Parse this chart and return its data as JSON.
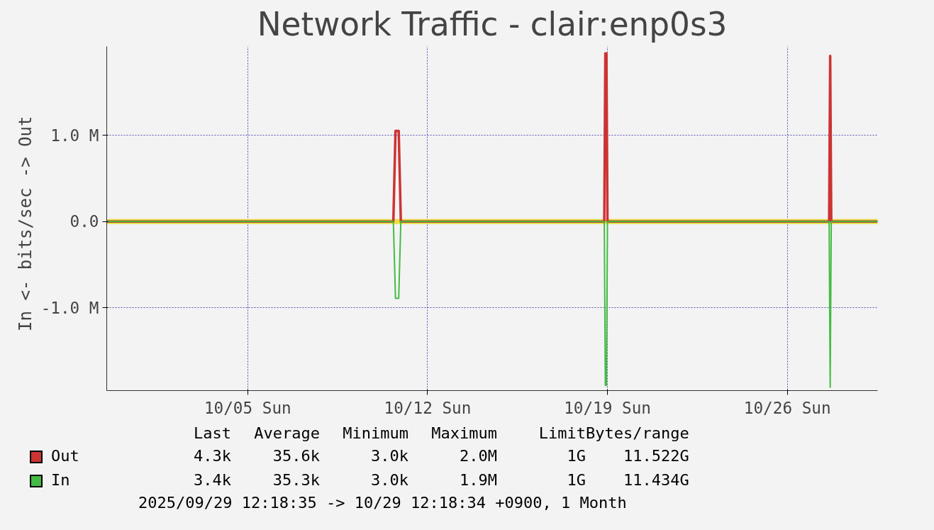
{
  "chart_data": {
    "type": "line",
    "title": "Network Traffic - clair:enp0s3",
    "ylabel": "In <-  bits/sec -> Out",
    "xlim": [
      "2025-09-29T12:18",
      "2025-10-29T12:18"
    ],
    "xticks": [
      {
        "value": "2025-10-05",
        "label": "10/05 Sun"
      },
      {
        "value": "2025-10-12",
        "label": "10/12 Sun"
      },
      {
        "value": "2025-10-19",
        "label": "10/19 Sun"
      },
      {
        "value": "2025-10-26",
        "label": "10/26 Sun"
      }
    ],
    "ylim": [
      -1960000,
      2030000
    ],
    "yticks": [
      {
        "value": -1000000,
        "label": "-1.0 M"
      },
      {
        "value": 0,
        "label": "0.0"
      },
      {
        "value": 1000000,
        "label": "1.0 M"
      }
    ],
    "grid": true,
    "legend": "bottom left",
    "line_style": "solid",
    "ref_lines": [
      {
        "axis": "y",
        "value": 0,
        "label": null,
        "color": "#e8e040"
      }
    ],
    "series": [
      {
        "name": "Out",
        "color": "#cc3333",
        "x": [
          "2025-09-29T12:18",
          "2025-10-10T16:00",
          "2025-10-10T18:00",
          "2025-10-10T21:00",
          "2025-10-10T23:00",
          "2025-10-18T21:00",
          "2025-10-18T22:00",
          "2025-10-18T23:00",
          "2025-10-19T00:00",
          "2025-10-27T15:00",
          "2025-10-27T16:00",
          "2025-10-27T17:00",
          "2025-10-29T12:18"
        ],
        "values": [
          0,
          0,
          1050000,
          1050000,
          0,
          0,
          1950000,
          1950000,
          0,
          0,
          1920000,
          0,
          0
        ]
      },
      {
        "name": "In",
        "color": "#44bb44",
        "x": [
          "2025-09-29T12:18",
          "2025-10-10T16:00",
          "2025-10-10T18:00",
          "2025-10-10T21:00",
          "2025-10-10T23:00",
          "2025-10-18T21:00",
          "2025-10-18T22:00",
          "2025-10-18T23:00",
          "2025-10-19T00:00",
          "2025-10-27T15:00",
          "2025-10-27T16:00",
          "2025-10-27T17:00",
          "2025-10-29T12:18"
        ],
        "values": [
          0,
          0,
          -890000,
          -890000,
          0,
          0,
          -1900000,
          -1900000,
          0,
          0,
          -1920000,
          0,
          0
        ]
      }
    ],
    "annotations": [
      "Last",
      "Average",
      "Minimum",
      "Maximum",
      "Limit",
      "Bytes/range",
      "4.3k",
      "35.6k",
      "3.0k",
      "2.0M",
      "1G",
      "11.522G",
      "3.4k",
      "35.3k",
      "3.0k",
      "1.9M",
      "1G",
      "11.434G",
      "2025/09/29 12:18:35 -> 10/29 12:18:34 +0900, 1 Month"
    ]
  }
}
